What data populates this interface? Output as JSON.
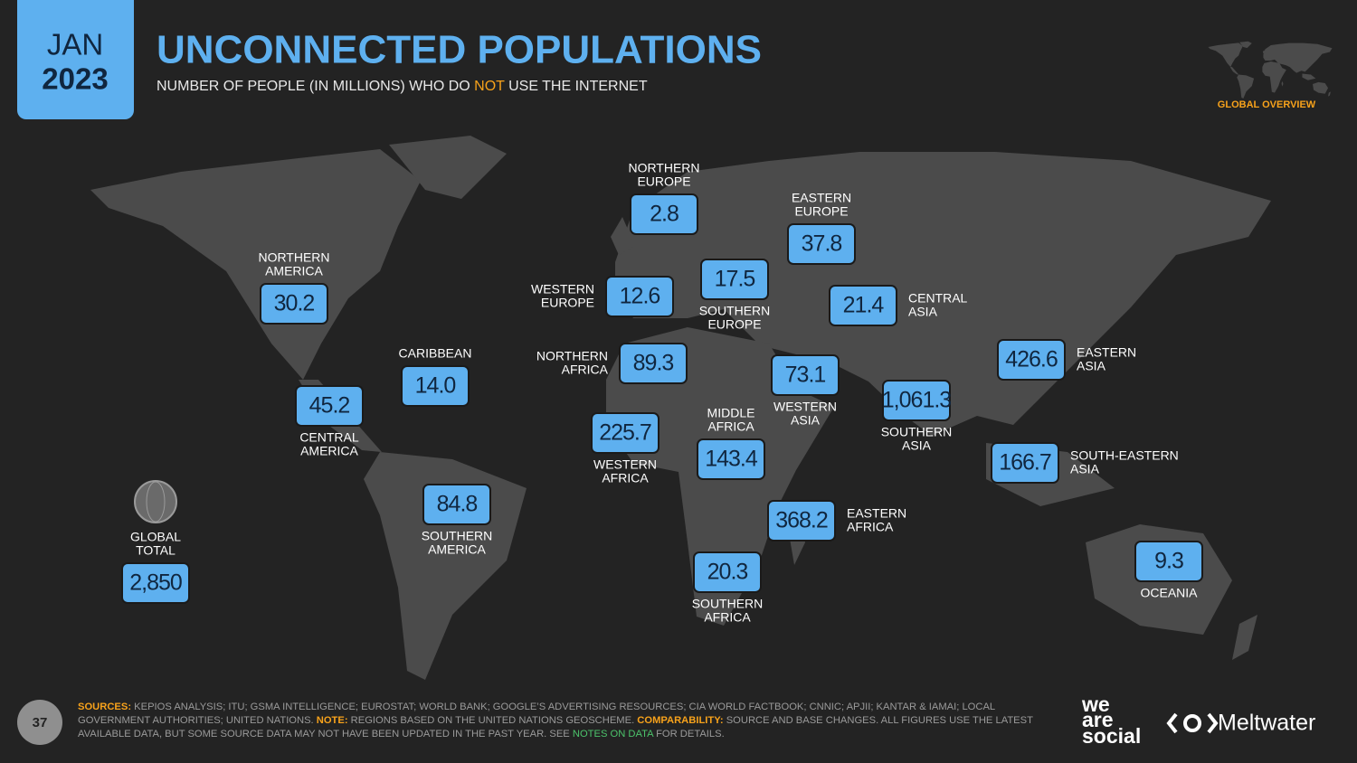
{
  "header": {
    "month": "JAN",
    "year": "2023",
    "title": "UNCONNECTED POPULATIONS",
    "subtitle": [
      "NUMBER OF PEOPLE (IN MILLIONS) WHO DO ",
      "NOT",
      " USE THE INTERNET"
    ],
    "section": "GLOBAL OVERVIEW"
  },
  "global_total": {
    "label": [
      "GLOBAL",
      "TOTAL"
    ],
    "value": "2,850"
  },
  "regions": [
    {
      "label": [
        "NORTHERN",
        "AMERICA"
      ],
      "value": "30.2"
    },
    {
      "label": [
        "CENTRAL",
        "AMERICA"
      ],
      "value": "45.2"
    },
    {
      "label": [
        "CARIBBEAN"
      ],
      "value": "14.0"
    },
    {
      "label": [
        "SOUTHERN",
        "AMERICA"
      ],
      "value": "84.8"
    },
    {
      "label": [
        "NORTHERN",
        "EUROPE"
      ],
      "value": "2.8"
    },
    {
      "label": [
        "WESTERN",
        "EUROPE"
      ],
      "value": "12.6"
    },
    {
      "label": [
        "SOUTHERN",
        "EUROPE"
      ],
      "value": "17.5"
    },
    {
      "label": [
        "EASTERN",
        "EUROPE"
      ],
      "value": "37.8"
    },
    {
      "label": [
        "NORTHERN",
        "AFRICA"
      ],
      "value": "89.3"
    },
    {
      "label": [
        "WESTERN",
        "AFRICA"
      ],
      "value": "225.7"
    },
    {
      "label": [
        "MIDDLE",
        "AFRICA"
      ],
      "value": "143.4"
    },
    {
      "label": [
        "EASTERN",
        "AFRICA"
      ],
      "value": "368.2"
    },
    {
      "label": [
        "SOUTHERN",
        "AFRICA"
      ],
      "value": "20.3"
    },
    {
      "label": [
        "WESTERN",
        "ASIA"
      ],
      "value": "73.1"
    },
    {
      "label": [
        "CENTRAL",
        "ASIA"
      ],
      "value": "21.4"
    },
    {
      "label": [
        "SOUTHERN",
        "ASIA"
      ],
      "value": "1,061.3"
    },
    {
      "label": [
        "EASTERN",
        "ASIA"
      ],
      "value": "426.6"
    },
    {
      "label": [
        "SOUTH-EASTERN",
        "ASIA"
      ],
      "value": "166.7"
    },
    {
      "label": [
        "OCEANIA"
      ],
      "value": "9.3"
    }
  ],
  "footer": {
    "page": "37",
    "segments": [
      "SOURCES:",
      " KEPIOS ANALYSIS; ITU; GSMA INTELLIGENCE; EUROSTAT; WORLD BANK; GOOGLE’S ADVERTISING RESOURCES; CIA WORLD FACTBOOK; CNNIC; APJII; KANTAR & IAMAI; LOCAL GOVERNMENT AUTHORITIES; UNITED NATIONS. ",
      "NOTE:",
      " REGIONS BASED ON THE UNITED NATIONS GEOSCHEME. ",
      "COMPARABILITY:",
      " SOURCE AND BASE CHANGES. ALL FIGURES USE THE LATEST AVAILABLE DATA, BUT SOME SOURCE DATA MAY NOT HAVE BEEN UPDATED IN THE PAST YEAR. SEE ",
      "NOTES ON DATA",
      " FOR DETAILS."
    ],
    "logos": {
      "partner": [
        "we",
        "are",
        "social"
      ],
      "sponsor": "Meltwater"
    }
  }
}
